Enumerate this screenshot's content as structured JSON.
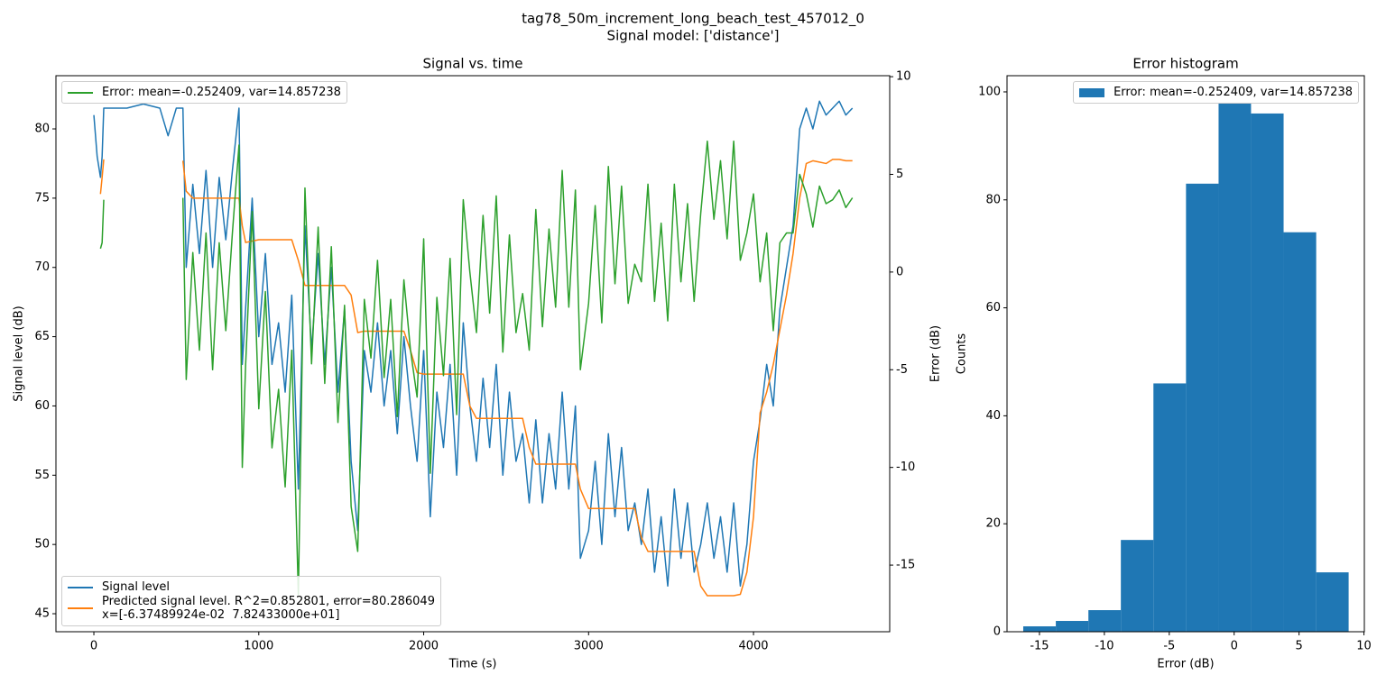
{
  "figure": {
    "title": "tag78_50m_increment_long_beach_test_457012_0",
    "subtitle": "Signal model: ['distance']"
  },
  "chart_data": [
    {
      "type": "line",
      "title": "Signal vs. time",
      "xlabel": "Time (s)",
      "ylabel": "Signal level (dB)",
      "y2label": "Error (dB)",
      "x": [
        0,
        20,
        40,
        50,
        60,
        100,
        200,
        300,
        400,
        450,
        500,
        540,
        560,
        600,
        640,
        680,
        720,
        760,
        800,
        840,
        880,
        900,
        920,
        960,
        1000,
        1040,
        1080,
        1120,
        1160,
        1200,
        1240,
        1280,
        1320,
        1360,
        1400,
        1440,
        1480,
        1520,
        1560,
        1600,
        1640,
        1680,
        1720,
        1760,
        1800,
        1840,
        1880,
        1920,
        1960,
        2000,
        2040,
        2080,
        2120,
        2160,
        2200,
        2240,
        2280,
        2320,
        2360,
        2400,
        2440,
        2480,
        2520,
        2560,
        2600,
        2640,
        2680,
        2720,
        2760,
        2800,
        2840,
        2880,
        2920,
        2950,
        3000,
        3040,
        3080,
        3120,
        3160,
        3200,
        3240,
        3280,
        3320,
        3360,
        3400,
        3440,
        3480,
        3520,
        3560,
        3600,
        3640,
        3680,
        3720,
        3760,
        3800,
        3840,
        3880,
        3920,
        3960,
        4000,
        4040,
        4080,
        4120,
        4160,
        4200,
        4240,
        4280,
        4320,
        4360,
        4400,
        4440,
        4480,
        4520,
        4560,
        4600
      ],
      "series": [
        {
          "name": "Signal level",
          "color": "#1f77b4",
          "values": [
            81,
            78,
            76.5,
            78,
            81.5,
            81.5,
            81.5,
            81.8,
            81.5,
            79.5,
            81.5,
            81.5,
            70,
            76,
            71,
            77,
            70,
            76.5,
            72,
            77,
            81.5,
            63,
            67,
            75,
            65,
            71,
            63,
            66,
            61,
            68,
            54,
            73,
            64,
            71,
            63,
            70,
            61,
            67,
            56,
            51,
            64,
            61,
            66,
            60,
            64,
            58,
            65,
            60,
            56,
            64,
            52,
            61,
            57,
            63,
            55,
            66,
            60,
            56,
            62,
            57,
            63,
            55,
            61,
            56,
            58,
            53,
            59,
            53,
            58,
            54,
            61,
            54,
            60,
            49,
            51,
            56,
            50,
            58,
            52,
            57,
            51,
            53,
            50,
            54,
            48,
            52,
            47,
            54,
            49,
            53,
            48,
            50,
            53,
            49,
            52,
            48,
            53,
            47,
            50,
            56,
            59,
            63,
            60,
            67,
            70,
            73,
            80,
            81.5,
            80,
            82,
            81,
            81.5,
            82,
            81,
            81.5
          ]
        },
        {
          "name": "Predicted signal level. R^2=0.852801, error=80.286049\nx=[-6.37489924e-02  7.82433000e+01]",
          "color": "#ff7f0e",
          "values": [
            null,
            null,
            75.3,
            76.5,
            77.8,
            null,
            null,
            null,
            null,
            null,
            null,
            77.7,
            75.5,
            75,
            75,
            75,
            75,
            75,
            75,
            75,
            75,
            73,
            71.8,
            71.9,
            72,
            72,
            72,
            72,
            72,
            72,
            70.5,
            68.7,
            68.7,
            68.7,
            68.7,
            68.7,
            68.7,
            68.7,
            68,
            65.3,
            65.4,
            65.4,
            65.4,
            65.4,
            65.4,
            65.4,
            65.4,
            64,
            62.4,
            62.3,
            62.3,
            62.3,
            62.3,
            62.3,
            62.3,
            62.3,
            60,
            59.1,
            59.1,
            59.1,
            59.1,
            59.1,
            59.1,
            59.1,
            59.1,
            57,
            55.8,
            55.8,
            55.8,
            55.8,
            55.8,
            55.8,
            55.8,
            54,
            52.6,
            52.6,
            52.6,
            52.6,
            52.6,
            52.6,
            52.6,
            52.6,
            50.5,
            49.5,
            49.5,
            49.5,
            49.5,
            49.5,
            49.5,
            49.5,
            49.5,
            47,
            46.3,
            46.3,
            46.3,
            46.3,
            46.3,
            46.4,
            48,
            52,
            59.5,
            61,
            63,
            65.5,
            68,
            71,
            75,
            77.5,
            77.7,
            77.6,
            77.5,
            77.8,
            77.8,
            77.7,
            77.7
          ]
        },
        {
          "name": "Error: mean=-0.252409, var=14.857238",
          "color": "#2ca02c",
          "axis": "y2",
          "values": [
            null,
            null,
            1.2,
            1.5,
            3.7,
            null,
            null,
            null,
            null,
            null,
            null,
            3.8,
            -5.5,
            1,
            -4,
            2,
            -5,
            1.5,
            -3,
            2,
            6.5,
            -10,
            -4.8,
            3.1,
            -7,
            -1,
            -9,
            -6,
            -11,
            -4,
            -16.5,
            4.3,
            -4.7,
            2.3,
            -5.7,
            1.3,
            -7.7,
            -1.7,
            -12,
            -14.3,
            -1.4,
            -4.4,
            0.6,
            -5.4,
            -1.4,
            -7.4,
            -0.4,
            -4,
            -6.4,
            1.7,
            -10.3,
            -1.3,
            -5.3,
            0.7,
            -7.3,
            3.7,
            0,
            -3.1,
            2.9,
            -2.1,
            3.9,
            -4.1,
            1.9,
            -3.1,
            -1.1,
            -4,
            3.2,
            -2.8,
            2.2,
            -1.8,
            5.2,
            -1.8,
            4.2,
            -5,
            -1.6,
            3.4,
            -2.6,
            5.4,
            -0.6,
            4.4,
            -1.6,
            0.4,
            -0.5,
            4.5,
            -1.5,
            2.5,
            -2.5,
            4.5,
            -0.5,
            3.5,
            -1.5,
            3,
            6.7,
            2.7,
            5.7,
            1.7,
            6.7,
            0.6,
            2,
            4,
            -0.5,
            2,
            -3,
            1.5,
            2,
            2,
            5,
            4,
            2.3,
            4.4,
            3.5,
            3.7,
            4.2,
            3.3,
            3.8
          ]
        }
      ],
      "xlim": [
        -230,
        4826
      ],
      "xticks": [
        0,
        1000,
        2000,
        3000,
        4000
      ],
      "ylim": [
        43.7,
        83.84
      ],
      "yticks": [
        45,
        50,
        55,
        60,
        65,
        70,
        75,
        80
      ],
      "y2lim": [
        -18.41,
        10.05
      ],
      "y2ticks": [
        -15,
        -10,
        -5,
        0,
        5,
        10
      ],
      "legend": "lower left",
      "legend_y2": "upper left"
    },
    {
      "type": "histogram",
      "title": "Error histogram",
      "xlabel": "Error (dB)",
      "ylabel": "Counts",
      "name": "Error: mean=-0.252409, var=14.857238",
      "color": "#1f77b4",
      "bins": [
        -16.25,
        -13.74,
        -11.23,
        -8.73,
        -6.22,
        -3.71,
        -1.2,
        1.3,
        3.81,
        6.32,
        8.82
      ],
      "counts": [
        1,
        2,
        4,
        17,
        46,
        83,
        98,
        96,
        74,
        11
      ],
      "xlim": [
        -17.5,
        10.03
      ],
      "xticks": [
        -15,
        -10,
        -5,
        0,
        5,
        10
      ],
      "ylim": [
        0,
        103
      ],
      "yticks": [
        0,
        20,
        40,
        60,
        80,
        100
      ],
      "legend": "upper right"
    }
  ]
}
